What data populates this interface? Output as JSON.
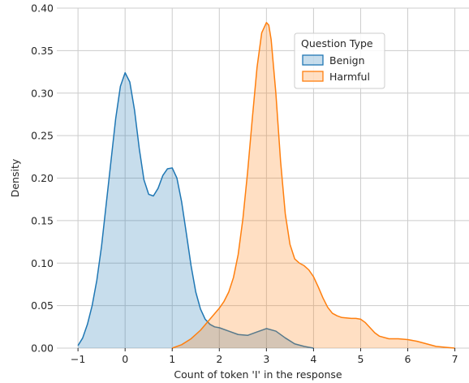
{
  "chart_data": {
    "type": "area",
    "xlabel": "Count of token 'I' in the response",
    "ylabel": "Density",
    "xlim": [
      -1.45,
      7.3
    ],
    "ylim": [
      0,
      0.4
    ],
    "xticks": [
      -1,
      0,
      1,
      2,
      3,
      4,
      5,
      6,
      7
    ],
    "xtick_labels": [
      "−1",
      "0",
      "1",
      "2",
      "3",
      "4",
      "5",
      "6",
      "7"
    ],
    "yticks": [
      0.0,
      0.05,
      0.1,
      0.15,
      0.2,
      0.25,
      0.3,
      0.35,
      0.4
    ],
    "ytick_labels": [
      "0.00",
      "0.05",
      "0.10",
      "0.15",
      "0.20",
      "0.25",
      "0.30",
      "0.35",
      "0.40"
    ],
    "grid": true,
    "legend": {
      "title": "Question Type",
      "placement": "upper-center-right",
      "entries": [
        "Benign",
        "Harmful"
      ]
    },
    "series": [
      {
        "name": "Benign",
        "color": "#1f77b4",
        "fill": "#1f77b4",
        "points": [
          [
            -1.0,
            0.003
          ],
          [
            -0.9,
            0.012
          ],
          [
            -0.8,
            0.028
          ],
          [
            -0.7,
            0.05
          ],
          [
            -0.6,
            0.08
          ],
          [
            -0.5,
            0.12
          ],
          [
            -0.4,
            0.17
          ],
          [
            -0.3,
            0.22
          ],
          [
            -0.2,
            0.27
          ],
          [
            -0.1,
            0.308
          ],
          [
            0.0,
            0.324
          ],
          [
            0.1,
            0.313
          ],
          [
            0.2,
            0.28
          ],
          [
            0.3,
            0.235
          ],
          [
            0.4,
            0.198
          ],
          [
            0.5,
            0.181
          ],
          [
            0.6,
            0.179
          ],
          [
            0.7,
            0.188
          ],
          [
            0.8,
            0.203
          ],
          [
            0.9,
            0.211
          ],
          [
            1.0,
            0.212
          ],
          [
            1.1,
            0.2
          ],
          [
            1.2,
            0.172
          ],
          [
            1.3,
            0.135
          ],
          [
            1.4,
            0.097
          ],
          [
            1.5,
            0.066
          ],
          [
            1.6,
            0.046
          ],
          [
            1.7,
            0.034
          ],
          [
            1.8,
            0.028
          ],
          [
            1.9,
            0.025
          ],
          [
            2.0,
            0.024
          ],
          [
            2.2,
            0.02
          ],
          [
            2.4,
            0.016
          ],
          [
            2.6,
            0.015
          ],
          [
            2.8,
            0.019
          ],
          [
            3.0,
            0.023
          ],
          [
            3.2,
            0.02
          ],
          [
            3.4,
            0.012
          ],
          [
            3.6,
            0.005
          ],
          [
            3.8,
            0.002
          ],
          [
            4.0,
            0.0
          ]
        ]
      },
      {
        "name": "Harmful",
        "color": "#ff7f0e",
        "fill": "#ff7f0e",
        "points": [
          [
            1.0,
            0.0
          ],
          [
            1.2,
            0.004
          ],
          [
            1.4,
            0.011
          ],
          [
            1.6,
            0.021
          ],
          [
            1.8,
            0.034
          ],
          [
            2.0,
            0.047
          ],
          [
            2.1,
            0.055
          ],
          [
            2.2,
            0.066
          ],
          [
            2.3,
            0.083
          ],
          [
            2.4,
            0.11
          ],
          [
            2.5,
            0.152
          ],
          [
            2.6,
            0.207
          ],
          [
            2.7,
            0.27
          ],
          [
            2.8,
            0.33
          ],
          [
            2.9,
            0.371
          ],
          [
            3.0,
            0.383
          ],
          [
            3.05,
            0.38
          ],
          [
            3.1,
            0.363
          ],
          [
            3.2,
            0.3
          ],
          [
            3.3,
            0.22
          ],
          [
            3.4,
            0.158
          ],
          [
            3.5,
            0.122
          ],
          [
            3.6,
            0.105
          ],
          [
            3.7,
            0.1
          ],
          [
            3.8,
            0.097
          ],
          [
            3.9,
            0.092
          ],
          [
            4.0,
            0.084
          ],
          [
            4.1,
            0.072
          ],
          [
            4.2,
            0.059
          ],
          [
            4.3,
            0.048
          ],
          [
            4.4,
            0.041
          ],
          [
            4.5,
            0.038
          ],
          [
            4.6,
            0.036
          ],
          [
            4.8,
            0.035
          ],
          [
            4.9,
            0.035
          ],
          [
            5.0,
            0.034
          ],
          [
            5.1,
            0.03
          ],
          [
            5.2,
            0.024
          ],
          [
            5.3,
            0.018
          ],
          [
            5.4,
            0.014
          ],
          [
            5.6,
            0.011
          ],
          [
            5.8,
            0.011
          ],
          [
            6.0,
            0.01
          ],
          [
            6.2,
            0.008
          ],
          [
            6.4,
            0.005
          ],
          [
            6.6,
            0.002
          ],
          [
            6.8,
            0.001
          ],
          [
            7.0,
            0.0
          ]
        ]
      }
    ]
  }
}
